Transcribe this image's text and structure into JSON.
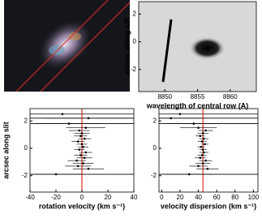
{
  "chart_data": [
    {
      "type": "image",
      "xlabel": "wavelength of central row (A)",
      "ylabel": "arcsec along slit",
      "xlim": [
        8846,
        8864
      ],
      "ylim": [
        -3.6,
        2.9
      ],
      "xticks": [
        8850,
        8855,
        8860
      ],
      "yticks": [
        2,
        0,
        -2
      ]
    },
    {
      "type": "scatter",
      "xlabel": "rotation velocity (km s⁻¹)",
      "ylabel": "arcsec along slit",
      "xlim": [
        -40,
        40
      ],
      "ylim": [
        -3.2,
        2.9
      ],
      "xticks": [
        -40,
        -20,
        0,
        20,
        40
      ],
      "yticks": [
        -2,
        0,
        2
      ],
      "hlines": [
        2.5,
        2.2,
        1.8,
        -1.9
      ],
      "vline": 0,
      "vline_color": "#e03020",
      "color": "#000000",
      "y": [
        2.5,
        2.2,
        1.8,
        1.5,
        1.3,
        1.1,
        0.9,
        0.7,
        0.5,
        0.3,
        0.1,
        -0.1,
        -0.3,
        -0.5,
        -0.7,
        -0.9,
        -1.1,
        -1.3,
        -1.5,
        -1.9
      ],
      "x": [
        -15,
        5,
        -10,
        3,
        -2,
        0,
        -1,
        2,
        -3,
        0,
        1,
        -2,
        3,
        -1,
        2,
        -4,
        1,
        -3,
        5,
        -20
      ],
      "xerr": [
        30,
        35,
        25,
        15,
        8,
        6,
        5,
        5,
        5,
        4,
        4,
        4,
        5,
        5,
        6,
        7,
        8,
        10,
        12,
        20
      ]
    },
    {
      "type": "scatter",
      "xlabel": "velocity dispersion (km s⁻¹)",
      "xlim": [
        -3,
        105
      ],
      "ylim": [
        -3.2,
        2.9
      ],
      "xticks": [
        0,
        20,
        40,
        60,
        80,
        100
      ],
      "yticks": [
        -2,
        0,
        2
      ],
      "hlines": [
        2.5,
        2.2,
        1.8,
        -1.9
      ],
      "vline": 45,
      "vline_color": "#e03020",
      "color": "#000000",
      "y": [
        2.5,
        2.2,
        1.8,
        1.5,
        1.3,
        1.1,
        0.9,
        0.7,
        0.5,
        0.3,
        0.1,
        -0.1,
        -0.3,
        -0.5,
        -0.7,
        -0.9,
        -1.1,
        -1.3,
        -1.5,
        -1.9
      ],
      "x": [
        20,
        10,
        35,
        40,
        48,
        45,
        42,
        46,
        44,
        47,
        43,
        45,
        46,
        44,
        42,
        48,
        45,
        40,
        50,
        30
      ],
      "xerr": [
        30,
        40,
        30,
        20,
        8,
        6,
        5,
        5,
        5,
        4,
        4,
        4,
        5,
        5,
        6,
        7,
        8,
        10,
        12,
        25
      ]
    }
  ]
}
